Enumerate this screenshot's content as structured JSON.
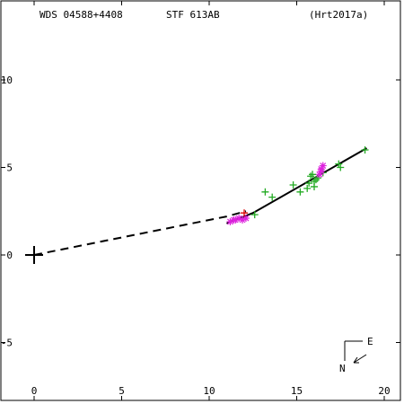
{
  "header": {
    "wds_id": "WDS 04588+4408",
    "discoverer": "STF 613AB",
    "reference": "(Hrt2017a)"
  },
  "compass": {
    "east_label": "E",
    "north_label": "N"
  },
  "colors": {
    "axis": "#000000",
    "measure_green": "#22aa22",
    "measure_magenta": "#dd22dd",
    "measure_red": "#dd0000",
    "orbit": "#000000"
  },
  "chart_data": {
    "type": "scatter",
    "xlim": [
      -2,
      21
    ],
    "ylim": [
      -8.5,
      13.9
    ],
    "x_ticks": [
      0,
      5,
      10,
      15,
      20
    ],
    "y_ticks": [
      10,
      5,
      0,
      -5
    ],
    "x_tick_labels": [
      "0",
      "5",
      "10",
      "15",
      "20"
    ],
    "y_tick_labels": [
      "10",
      "5",
      "0",
      "-5"
    ],
    "primary": [
      0,
      0
    ],
    "fitted_path": [
      [
        11.0,
        1.8
      ],
      [
        12.5,
        2.4
      ],
      [
        19.0,
        6.1
      ]
    ],
    "extrapolated_path": [
      [
        0.0,
        0.0
      ],
      [
        11.0,
        2.2
      ],
      [
        12.1,
        2.5
      ]
    ],
    "series": [
      {
        "marker": "plus",
        "color": "green",
        "points": [
          [
            12.6,
            2.3
          ],
          [
            13.2,
            3.6
          ],
          [
            13.6,
            3.3
          ],
          [
            14.8,
            4.0
          ],
          [
            15.2,
            3.6
          ],
          [
            15.6,
            3.8
          ],
          [
            15.7,
            4.1
          ],
          [
            15.8,
            4.5
          ],
          [
            16.0,
            4.2
          ],
          [
            16.1,
            4.3
          ],
          [
            16.2,
            4.4
          ],
          [
            16.0,
            3.9
          ],
          [
            16.5,
            4.7
          ],
          [
            17.4,
            5.2
          ],
          [
            17.5,
            5.0
          ],
          [
            18.9,
            6.0
          ],
          [
            15.9,
            4.6
          ]
        ]
      },
      {
        "marker": "star",
        "color": "magenta",
        "points": [
          [
            11.2,
            1.9
          ],
          [
            11.5,
            2.0
          ],
          [
            11.7,
            2.1
          ],
          [
            11.9,
            2.0
          ],
          [
            12.1,
            2.1
          ],
          [
            11.4,
            2.0
          ],
          [
            16.3,
            4.6
          ],
          [
            16.4,
            4.9
          ],
          [
            16.5,
            5.1
          ],
          [
            16.4,
            4.8
          ]
        ]
      },
      {
        "marker": "plus",
        "color": "red",
        "points": [
          [
            12.0,
            2.4
          ]
        ]
      }
    ]
  }
}
